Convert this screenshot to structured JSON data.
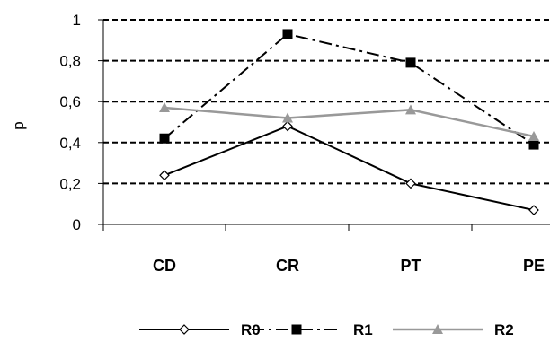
{
  "chart_data": {
    "type": "line",
    "title": "",
    "xlabel": "",
    "ylabel": "p",
    "categories": [
      "CD",
      "CR",
      "PT",
      "PE"
    ],
    "ylim": [
      0,
      1
    ],
    "y_ticks": [
      "0",
      "0,2",
      "0,4",
      "0,6",
      "0,8",
      "1"
    ],
    "y_tick_values": [
      0,
      0.2,
      0.4,
      0.6,
      0.8,
      1
    ],
    "grid": "horizontal dashed",
    "legend_position": "bottom",
    "series": [
      {
        "name": "R0",
        "values": [
          0.24,
          0.48,
          0.2,
          0.07
        ],
        "color": "#000000",
        "marker": "diamond-open",
        "line_style": "solid"
      },
      {
        "name": "R1",
        "values": [
          0.42,
          0.93,
          0.79,
          0.39
        ],
        "color": "#000000",
        "marker": "square-filled",
        "line_style": "dash-dot"
      },
      {
        "name": "R2",
        "values": [
          0.57,
          0.52,
          0.56,
          0.43
        ],
        "color": "#999999",
        "marker": "triangle-filled",
        "line_style": "solid"
      }
    ]
  }
}
